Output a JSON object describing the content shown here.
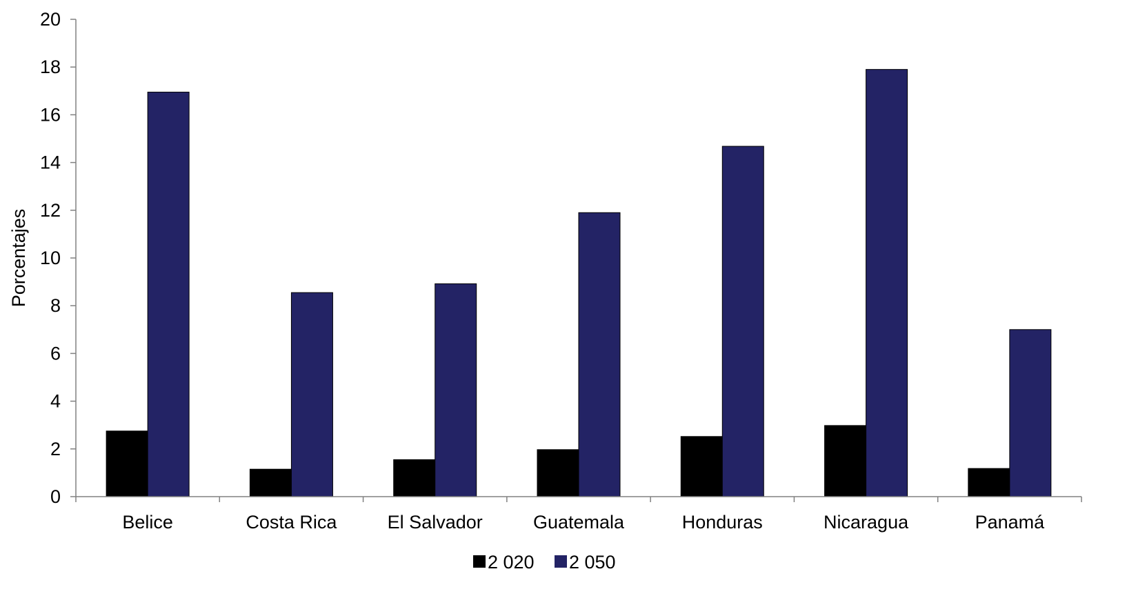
{
  "chart_data": {
    "type": "bar",
    "title": "",
    "xlabel": "",
    "ylabel": "Porcentajes",
    "ylim": [
      0,
      20
    ],
    "yticks": [
      0,
      2,
      4,
      6,
      8,
      10,
      12,
      14,
      16,
      18,
      20
    ],
    "grid": false,
    "legend_position": "bottom-center",
    "categories": [
      "Belice",
      "Costa Rica",
      "El Salvador",
      "Guatemala",
      "Honduras",
      "Nicaragua",
      "Panamá"
    ],
    "series": [
      {
        "name": "2 020",
        "color": "#000000",
        "values": [
          2.75,
          1.15,
          1.55,
          1.97,
          2.52,
          2.98,
          1.18
        ]
      },
      {
        "name": "2 050",
        "color": "#232365",
        "values": [
          16.95,
          8.55,
          8.92,
          11.9,
          14.68,
          17.9,
          7.0
        ]
      }
    ]
  }
}
